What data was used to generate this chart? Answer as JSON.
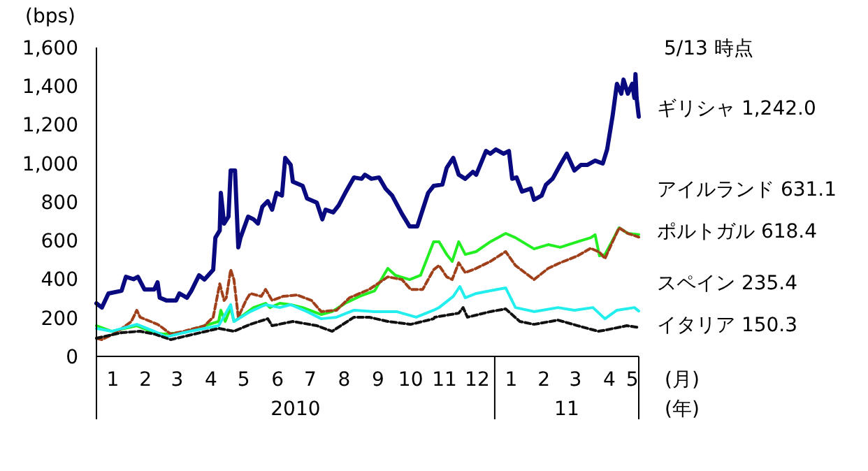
{
  "chart_data": {
    "type": "line",
    "subtitle": "5/13 時点",
    "ylabel": "(bps)",
    "xlabel": "(月)",
    "annotations": [
      "2010",
      "11",
      "(年)"
    ],
    "xlim": [
      "2010-01-01",
      "2011-05-13"
    ],
    "ylim": [
      0,
      1600
    ],
    "yticks": [
      0,
      {
        "value": 200,
        "label": "200"
      },
      {
        "value": 400,
        "label": "400"
      },
      {
        "value": 600,
        "label": "600"
      },
      {
        "value": 800,
        "label": "800"
      },
      {
        "value": 1000,
        "label": "1,000"
      },
      {
        "value": 1200,
        "label": "1,200"
      },
      {
        "value": 1400,
        "label": "1,400"
      },
      {
        "value": 1600,
        "label": "1,600"
      }
    ],
    "xticks": [
      {
        "value": "2010-01-16",
        "label": "1"
      },
      {
        "value": "2010-02-15",
        "label": "2"
      },
      {
        "value": "2010-03-16",
        "label": "3"
      },
      {
        "value": "2010-04-16",
        "label": "4"
      },
      {
        "value": "2010-05-16",
        "label": "5"
      },
      {
        "value": "2010-06-16",
        "label": "6"
      },
      {
        "value": "2010-07-16",
        "label": "7"
      },
      {
        "value": "2010-08-16",
        "label": "8"
      },
      {
        "value": "2010-09-16",
        "label": "9"
      },
      {
        "value": "2010-10-16",
        "label": "10"
      },
      {
        "value": "2010-11-16",
        "label": "11"
      },
      {
        "value": "2010-12-16",
        "label": "12"
      },
      {
        "value": "2011-01-16",
        "label": "1"
      },
      {
        "value": "2011-02-15",
        "label": "2"
      },
      {
        "value": "2011-03-16",
        "label": "3"
      },
      {
        "value": "2011-04-16",
        "label": "4"
      },
      {
        "value": "2011-05-07",
        "label": "5"
      }
    ],
    "grid": false,
    "marker": "none",
    "series": [
      {
        "name": "ギリシャ 1,242.0",
        "color": "#0a0a80",
        "line_style": "solid",
        "x": [
          "2010-01-01",
          "2010-01-06",
          "2010-01-12",
          "2010-01-24",
          "2010-01-28",
          "2010-02-04",
          "2010-02-08",
          "2010-02-14",
          "2010-02-23",
          "2010-02-26",
          "2010-02-28",
          "2010-03-06",
          "2010-03-15",
          "2010-03-18",
          "2010-03-25",
          "2010-03-29",
          "2010-04-05",
          "2010-04-10",
          "2010-04-18",
          "2010-04-20",
          "2010-04-24",
          "2010-04-25",
          "2010-04-28",
          "2010-05-02",
          "2010-05-04",
          "2010-05-08",
          "2010-05-11",
          "2010-05-13",
          "2010-05-20",
          "2010-05-25",
          "2010-05-29",
          "2010-06-02",
          "2010-06-07",
          "2010-06-11",
          "2010-06-15",
          "2010-06-20",
          "2010-06-23",
          "2010-06-28",
          "2010-06-30",
          "2010-07-09",
          "2010-07-13",
          "2010-07-22",
          "2010-07-27",
          "2010-07-30",
          "2010-08-06",
          "2010-08-11",
          "2010-08-17",
          "2010-08-25",
          "2010-09-01",
          "2010-09-04",
          "2010-09-10",
          "2010-09-17",
          "2010-09-23",
          "2010-09-29",
          "2010-10-08",
          "2010-10-15",
          "2010-10-22",
          "2010-10-27",
          "2010-11-01",
          "2010-11-06",
          "2010-11-14",
          "2010-11-18",
          "2010-11-24",
          "2010-11-29",
          "2010-12-05",
          "2010-12-12",
          "2010-12-15",
          "2010-12-24",
          "2010-12-28",
          "2011-01-02",
          "2011-01-09",
          "2011-01-14",
          "2011-01-17",
          "2011-01-21",
          "2011-01-26",
          "2011-02-03",
          "2011-02-06",
          "2011-02-13",
          "2011-02-17",
          "2011-02-23",
          "2011-03-02",
          "2011-03-08",
          "2011-03-15",
          "2011-03-21",
          "2011-03-27",
          "2011-04-03",
          "2011-04-10",
          "2011-04-14",
          "2011-04-19",
          "2011-04-23",
          "2011-04-27",
          "2011-04-29",
          "2011-05-03",
          "2011-05-07",
          "2011-05-09",
          "2011-05-10",
          "2011-05-11",
          "2011-05-13"
        ],
        "values": [
          275,
          253,
          326,
          340,
          412,
          400,
          412,
          347,
          347,
          384,
          304,
          290,
          290,
          326,
          304,
          340,
          420,
          398,
          449,
          615,
          652,
          847,
          688,
          724,
          963,
          963,
          565,
          615,
          724,
          710,
          688,
          775,
          804,
          760,
          847,
          833,
          1028,
          992,
          905,
          883,
          818,
          796,
          710,
          760,
          746,
          782,
          847,
          927,
          920,
          941,
          920,
          927,
          869,
          833,
          738,
          673,
          673,
          760,
          847,
          883,
          890,
          977,
          1028,
          941,
          920,
          956,
          941,
          1064,
          1050,
          1072,
          1050,
          1064,
          920,
          927,
          854,
          869,
          811,
          833,
          890,
          920,
          992,
          1050,
          963,
          992,
          992,
          1014,
          999,
          1072,
          1245,
          1412,
          1361,
          1434,
          1361,
          1412,
          1339,
          1462,
          1339,
          1242
        ]
      },
      {
        "name": "アイルランド 631.1",
        "color": "#22ee22",
        "line_style": "solid",
        "x": [
          "2010-01-01",
          "2010-01-15",
          "2010-02-07",
          "2010-02-23",
          "2010-03-03",
          "2010-03-22",
          "2010-04-10",
          "2010-04-23",
          "2010-04-25",
          "2010-04-29",
          "2010-05-04",
          "2010-05-07",
          "2010-05-13",
          "2010-05-25",
          "2010-06-05",
          "2010-06-09",
          "2010-06-18",
          "2010-06-28",
          "2010-07-09",
          "2010-07-26",
          "2010-08-05",
          "2010-08-17",
          "2010-08-30",
          "2010-09-13",
          "2010-09-25",
          "2010-10-02",
          "2010-10-15",
          "2010-10-25",
          "2010-11-06",
          "2010-11-11",
          "2010-11-18",
          "2010-11-23",
          "2010-11-29",
          "2010-12-05",
          "2010-12-15",
          "2010-12-28",
          "2011-01-11",
          "2011-01-20",
          "2011-02-06",
          "2011-02-19",
          "2011-03-02",
          "2011-03-18",
          "2011-03-30",
          "2011-04-03",
          "2011-04-07",
          "2011-04-12",
          "2011-04-19",
          "2011-04-25",
          "2011-05-03",
          "2011-05-13"
        ],
        "values": [
          159,
          130,
          159,
          123,
          116,
          123,
          159,
          181,
          239,
          181,
          253,
          181,
          203,
          253,
          275,
          253,
          275,
          268,
          253,
          217,
          232,
          275,
          311,
          340,
          456,
          420,
          398,
          420,
          594,
          594,
          528,
          492,
          594,
          528,
          543,
          594,
          637,
          615,
          557,
          579,
          565,
          594,
          615,
          630,
          521,
          528,
          601,
          666,
          637,
          631
        ]
      },
      {
        "name": "ポルトガル 618.4",
        "color": "#a0401a",
        "line_style": "dashed",
        "x": [
          "2010-01-01",
          "2010-01-06",
          "2010-01-19",
          "2010-02-02",
          "2010-02-07",
          "2010-02-10",
          "2010-02-26",
          "2010-02-28",
          "2010-03-10",
          "2010-03-22",
          "2010-04-10",
          "2010-04-18",
          "2010-04-24",
          "2010-04-28",
          "2010-04-30",
          "2010-05-04",
          "2010-05-07",
          "2010-05-11",
          "2010-05-18",
          "2010-05-22",
          "2010-06-01",
          "2010-06-05",
          "2010-06-11",
          "2010-06-21",
          "2010-07-04",
          "2010-07-17",
          "2010-07-26",
          "2010-08-09",
          "2010-08-21",
          "2010-09-08",
          "2010-09-25",
          "2010-10-08",
          "2010-10-16",
          "2010-10-27",
          "2010-11-06",
          "2010-11-11",
          "2010-11-18",
          "2010-11-23",
          "2010-11-29",
          "2010-12-05",
          "2010-12-15",
          "2010-12-28",
          "2011-01-11",
          "2011-01-20",
          "2011-02-06",
          "2011-02-19",
          "2011-03-02",
          "2011-03-18",
          "2011-03-30",
          "2011-04-07",
          "2011-04-12",
          "2011-04-19",
          "2011-04-25",
          "2011-05-03",
          "2011-05-13"
        ],
        "values": [
          94,
          87,
          123,
          181,
          239,
          203,
          166,
          159,
          116,
          130,
          159,
          203,
          376,
          290,
          304,
          449,
          398,
          203,
          290,
          326,
          311,
          347,
          290,
          311,
          318,
          290,
          232,
          239,
          304,
          347,
          412,
          398,
          347,
          347,
          449,
          471,
          412,
          398,
          485,
          434,
          456,
          492,
          543,
          471,
          398,
          456,
          485,
          521,
          560,
          540,
          507,
          594,
          666,
          637,
          618
        ]
      },
      {
        "name": "スペイン 235.4",
        "color": "#22eeee",
        "line_style": "solid",
        "x": [
          "2010-01-01",
          "2010-01-15",
          "2010-02-07",
          "2010-02-23",
          "2010-03-06",
          "2010-03-22",
          "2010-04-10",
          "2010-04-23",
          "2010-05-04",
          "2010-05-07",
          "2010-05-22",
          "2010-06-05",
          "2010-06-18",
          "2010-06-28",
          "2010-07-13",
          "2010-07-26",
          "2010-08-09",
          "2010-08-25",
          "2010-09-13",
          "2010-10-03",
          "2010-10-21",
          "2010-11-06",
          "2010-11-11",
          "2010-11-24",
          "2010-11-30",
          "2010-12-05",
          "2010-12-15",
          "2010-12-28",
          "2011-01-11",
          "2011-01-20",
          "2011-02-06",
          "2011-02-28",
          "2011-03-15",
          "2011-04-01",
          "2011-04-12",
          "2011-04-23",
          "2011-05-09",
          "2011-05-13"
        ],
        "values": [
          145,
          130,
          166,
          130,
          101,
          123,
          145,
          159,
          268,
          181,
          232,
          268,
          253,
          268,
          232,
          195,
          203,
          239,
          232,
          232,
          203,
          239,
          253,
          311,
          362,
          304,
          326,
          340,
          355,
          253,
          232,
          253,
          239,
          253,
          195,
          239,
          253,
          235
        ]
      },
      {
        "name": "イタリア 150.3",
        "color": "#111111",
        "line_style": "dashed",
        "x": [
          "2010-01-01",
          "2010-01-24",
          "2010-02-10",
          "2010-02-23",
          "2010-03-10",
          "2010-04-01",
          "2010-04-23",
          "2010-05-07",
          "2010-05-22",
          "2010-06-07",
          "2010-06-11",
          "2010-06-30",
          "2010-07-22",
          "2010-08-05",
          "2010-08-25",
          "2010-09-08",
          "2010-09-25",
          "2010-10-16",
          "2010-11-06",
          "2010-11-07",
          "2010-11-29",
          "2010-12-03",
          "2010-12-07",
          "2010-12-28",
          "2011-01-11",
          "2011-01-24",
          "2011-02-06",
          "2011-02-28",
          "2011-03-18",
          "2011-04-06",
          "2011-04-14",
          "2011-05-02",
          "2011-05-13"
        ],
        "values": [
          94,
          123,
          130,
          116,
          87,
          116,
          145,
          130,
          166,
          195,
          159,
          181,
          159,
          130,
          203,
          203,
          181,
          166,
          195,
          203,
          224,
          253,
          203,
          232,
          246,
          181,
          166,
          188,
          159,
          130,
          138,
          159,
          150
        ]
      }
    ]
  }
}
